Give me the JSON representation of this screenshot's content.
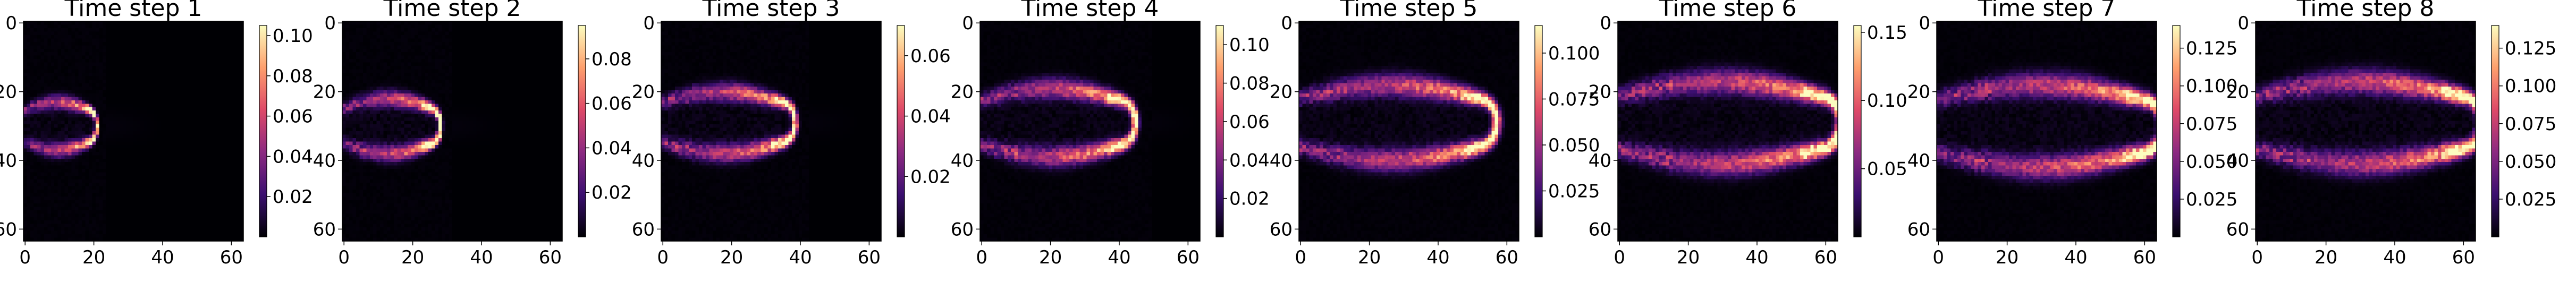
{
  "figure": {
    "colormap": "magma",
    "colormap_stops": [
      "#000004",
      "#3b0f70",
      "#8c2981",
      "#de4968",
      "#fe9f6d",
      "#fcfdbf"
    ]
  },
  "chart_data": [
    {
      "type": "heatmap",
      "title": "Time step 1",
      "x_ticks": [
        "0",
        "20",
        "40",
        "60"
      ],
      "y_ticks": [
        "0",
        "20",
        "40",
        "60"
      ],
      "xlim": [
        0,
        63
      ],
      "ylim": [
        63,
        0
      ],
      "grid": false,
      "colorbar": {
        "min": 0.0,
        "max": 0.105,
        "ticks": [
          "0.02",
          "0.04",
          "0.06",
          "0.08",
          "0.10"
        ]
      },
      "plume": {
        "head_x": 20,
        "center_y": 30,
        "width": 7,
        "peak": 0.105
      }
    },
    {
      "type": "heatmap",
      "title": "Time step 2",
      "x_ticks": [
        "0",
        "20",
        "40",
        "60"
      ],
      "y_ticks": [
        "0",
        "20",
        "40",
        "60"
      ],
      "xlim": [
        0,
        63
      ],
      "ylim": [
        63,
        0
      ],
      "grid": false,
      "colorbar": {
        "min": 0.0,
        "max": 0.095,
        "ticks": [
          "0.02",
          "0.04",
          "0.06",
          "0.08"
        ]
      },
      "plume": {
        "head_x": 27,
        "center_y": 30,
        "width": 8,
        "peak": 0.095
      }
    },
    {
      "type": "heatmap",
      "title": "Time step 3",
      "x_ticks": [
        "0",
        "20",
        "40",
        "60"
      ],
      "y_ticks": [
        "0",
        "20",
        "40",
        "60"
      ],
      "xlim": [
        0,
        63
      ],
      "ylim": [
        63,
        0
      ],
      "grid": false,
      "colorbar": {
        "min": 0.0,
        "max": 0.07,
        "ticks": [
          "0.02",
          "0.04",
          "0.06"
        ]
      },
      "plume": {
        "head_x": 37,
        "center_y": 29,
        "width": 9,
        "peak": 0.07
      }
    },
    {
      "type": "heatmap",
      "title": "Time step 4",
      "x_ticks": [
        "0",
        "20",
        "40",
        "60"
      ],
      "y_ticks": [
        "0",
        "20",
        "40",
        "60"
      ],
      "xlim": [
        0,
        63
      ],
      "ylim": [
        63,
        0
      ],
      "grid": false,
      "colorbar": {
        "min": 0.0,
        "max": 0.11,
        "ticks": [
          "0.02",
          "0.04",
          "0.06",
          "0.08",
          "0.10"
        ]
      },
      "plume": {
        "head_x": 43,
        "center_y": 29,
        "width": 10,
        "peak": 0.11
      }
    },
    {
      "type": "heatmap",
      "title": "Time step 5",
      "x_ticks": [
        "0",
        "20",
        "40",
        "60"
      ],
      "y_ticks": [
        "0",
        "20",
        "40",
        "60"
      ],
      "xlim": [
        0,
        63
      ],
      "ylim": [
        63,
        0
      ],
      "grid": false,
      "colorbar": {
        "min": 0.0,
        "max": 0.115,
        "ticks": [
          "0.025",
          "0.050",
          "0.075",
          "0.100"
        ]
      },
      "plume": {
        "head_x": 55,
        "center_y": 29,
        "width": 11,
        "peak": 0.115
      }
    },
    {
      "type": "heatmap",
      "title": "Time step 6",
      "x_ticks": [
        "0",
        "20",
        "40",
        "60"
      ],
      "y_ticks": [
        "0",
        "20",
        "40",
        "60"
      ],
      "xlim": [
        0,
        63
      ],
      "ylim": [
        63,
        0
      ],
      "grid": false,
      "colorbar": {
        "min": 0.0,
        "max": 0.155,
        "ticks": [
          "0.05",
          "0.10",
          "0.15"
        ]
      },
      "plume": {
        "head_x": 62,
        "center_y": 29,
        "width": 12,
        "peak": 0.155
      }
    },
    {
      "type": "heatmap",
      "title": "Time step 7",
      "x_ticks": [
        "0",
        "20",
        "40",
        "60"
      ],
      "y_ticks": [
        "0",
        "20",
        "40",
        "60"
      ],
      "xlim": [
        0,
        63
      ],
      "ylim": [
        63,
        0
      ],
      "grid": false,
      "colorbar": {
        "min": 0.0,
        "max": 0.14,
        "ticks": [
          "0.025",
          "0.050",
          "0.075",
          "0.100",
          "0.125"
        ]
      },
      "plume": {
        "head_x": 63,
        "center_y": 30,
        "width": 12,
        "peak": 0.14
      }
    },
    {
      "type": "heatmap",
      "title": "Time step 8",
      "x_ticks": [
        "0",
        "20",
        "40",
        "60"
      ],
      "y_ticks": [
        "0",
        "20",
        "40",
        "60"
      ],
      "xlim": [
        0,
        63
      ],
      "ylim": [
        63,
        0
      ],
      "grid": false,
      "colorbar": {
        "min": 0.0,
        "max": 0.14,
        "ticks": [
          "0.025",
          "0.050",
          "0.075",
          "0.100",
          "0.125"
        ]
      },
      "plume": {
        "head_x": 63,
        "center_y": 29,
        "width": 12,
        "peak": 0.14
      }
    }
  ]
}
